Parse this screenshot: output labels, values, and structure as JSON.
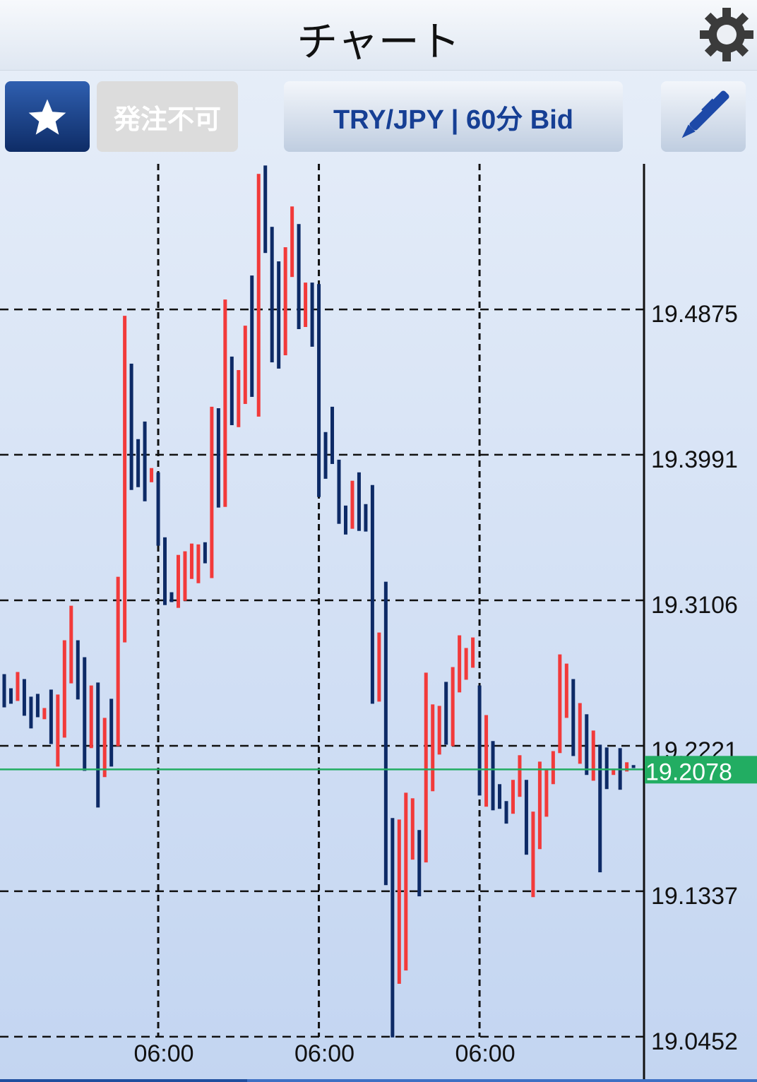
{
  "header": {
    "title": "チャート",
    "settings_icon": "gear-icon"
  },
  "toolbar": {
    "favorite_icon": "star-icon",
    "order_label": "発注不可",
    "symbol_label": "TRY/JPY | 60分 Bid",
    "draw_icon": "pen-icon"
  },
  "colors": {
    "R": "#f23a3a",
    "B": "#0d2a66",
    "current_price": "#22ad62",
    "grid": "#111111"
  },
  "chart_data": {
    "type": "bar",
    "style": "high-low bars",
    "ylim": [
      19.0194,
      19.576
    ],
    "y_ticks": [
      "19.4875",
      "19.3991",
      "19.3106",
      "19.2221",
      "19.1337",
      "19.0452"
    ],
    "x_ticks": [
      {
        "bar": 23,
        "label": "06:00"
      },
      {
        "bar": 47,
        "label": "06:00"
      },
      {
        "bar": 71,
        "label": "06:00"
      }
    ],
    "grid": true,
    "current_price": "19.2078",
    "high": [
      19.2657,
      19.2571,
      19.267,
      19.2627,
      19.252,
      19.2537,
      19.2451,
      19.2563,
      19.2533,
      19.2863,
      19.3073,
      19.2863,
      19.276,
      19.2588,
      19.2606,
      19.2391,
      19.2507,
      19.3249,
      19.4836,
      19.4545,
      19.4086,
      19.4193,
      19.391,
      19.3884,
      19.3489,
      19.3155,
      19.3382,
      19.3404,
      19.3451,
      19.3446,
      19.3459,
      19.4283,
      19.4274,
      19.4935,
      19.4588,
      19.4506,
      19.4776,
      19.5081,
      19.5699,
      19.575,
      19.5377,
      19.5167,
      19.5253,
      19.5501,
      19.5394,
      19.5038,
      19.5038,
      19.5029,
      19.4129,
      19.4283,
      19.3961,
      19.3682,
      19.3833,
      19.3884,
      19.3691,
      19.3807,
      19.291,
      19.3219,
      19.1782,
      19.1773,
      19.1936,
      19.1902,
      19.1709,
      19.2666,
      19.2473,
      19.2464,
      19.261,
      19.27,
      19.2893,
      19.2816,
      19.288,
      19.2588,
      19.2408,
      19.225,
      19.1988,
      19.1885,
      19.2014,
      19.2164,
      19.2014,
      19.1821,
      19.2125,
      19.2078,
      19.2189,
      19.2777,
      19.2721,
      19.2627,
      19.2481,
      19.2413,
      19.2314,
      19.2228,
      19.2211,
      19.2082,
      19.2207,
      19.2121,
      19.2104
    ],
    "low": [
      19.2455,
      19.2477,
      19.2494,
      19.2404,
      19.2327,
      19.2395,
      19.2383,
      19.2232,
      19.2095,
      19.2271,
      19.2601,
      19.2503,
      19.2069,
      19.2207,
      19.1846,
      19.2031,
      19.2095,
      19.2219,
      19.285,
      19.3777,
      19.3794,
      19.3708,
      19.3824,
      19.3438,
      19.3077,
      19.3095,
      19.306,
      19.3103,
      19.3236,
      19.321,
      19.3331,
      19.3241,
      19.367,
      19.3674,
      19.4171,
      19.4159,
      19.43,
      19.4343,
      19.4223,
      19.5218,
      19.4553,
      19.4515,
      19.4596,
      19.5072,
      19.4755,
      19.4768,
      19.4648,
      19.3734,
      19.3845,
      19.3935,
      19.3571,
      19.3506,
      19.3541,
      19.3528,
      19.3524,
      19.2477,
      19.249,
      19.1374,
      19.0448,
      19.0774,
      19.0855,
      19.1529,
      19.1306,
      19.1512,
      19.1945,
      19.2168,
      19.2228,
      19.2219,
      19.2546,
      19.2623,
      19.2696,
      19.1919,
      19.1851,
      19.1829,
      19.1838,
      19.1748,
      19.1808,
      19.1911,
      19.1559,
      19.1301,
      19.1593,
      19.179,
      19.1988,
      19.2177,
      19.2391,
      19.2159,
      19.2112,
      19.2044,
      19.2009,
      19.1452,
      19.1958,
      19.2044,
      19.1954,
      19.2065,
      19.2086
    ],
    "bar_colors": "BBRBBBRBRRRBBRBRBRRBBBRBBBRRRRBRBRBRRBRBBBRRBRBBBBBBRBBBRBBRRRBRRRBRRRRBRBBBRRBRRRRRRBRBRBBRBRB"
  }
}
